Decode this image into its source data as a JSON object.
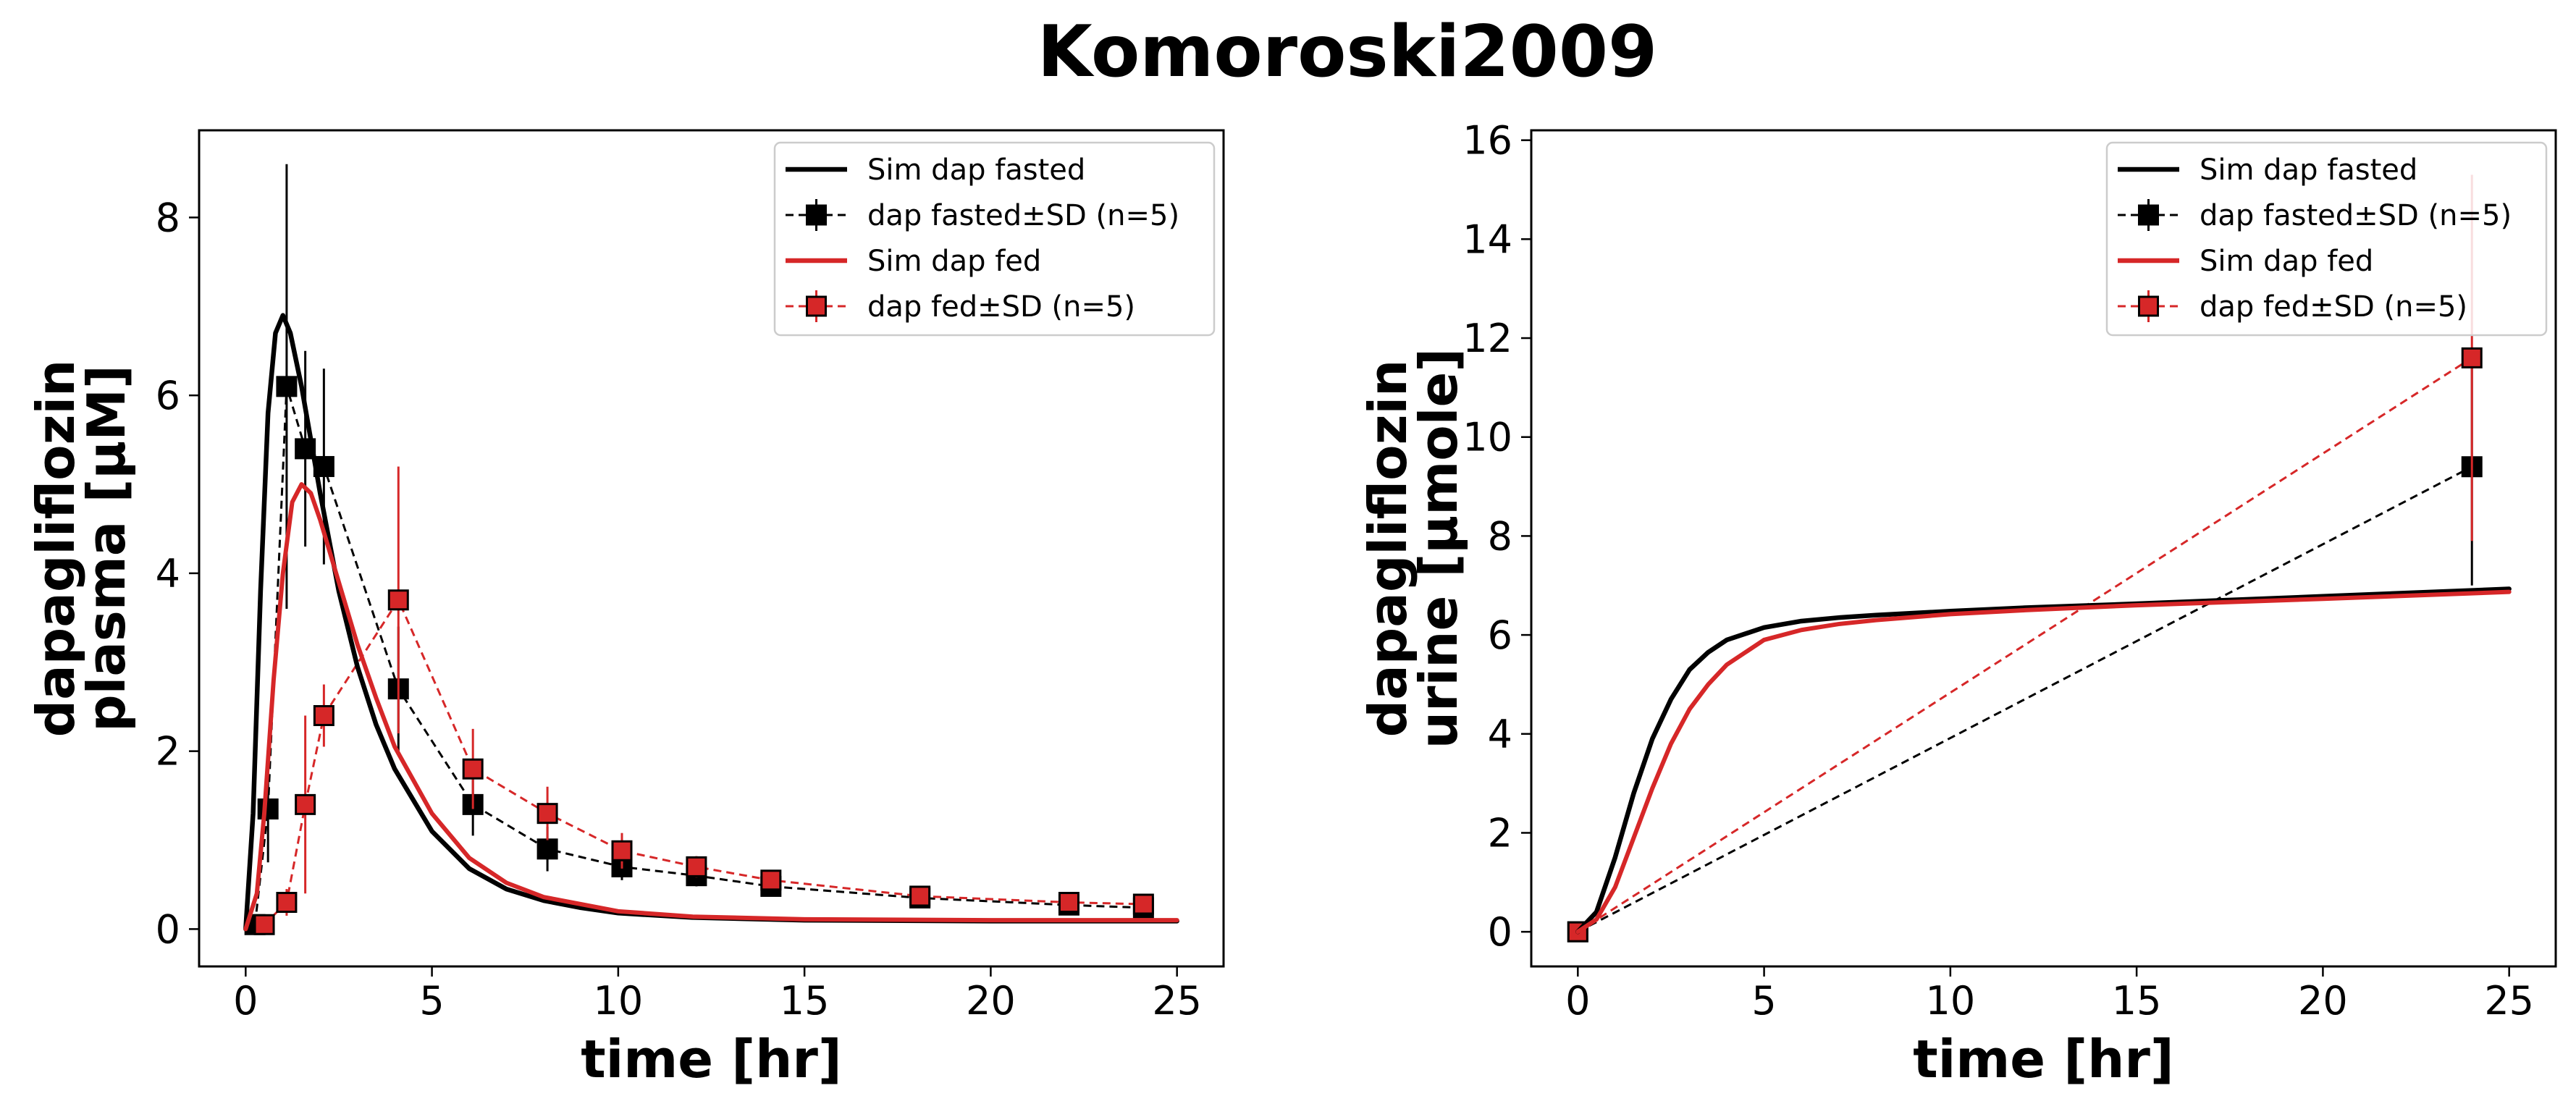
{
  "figure_title": "Komoroski2009",
  "colors": {
    "fasted": "#000000",
    "fed": "#d62728",
    "background": "#ffffff"
  },
  "chart_data": [
    {
      "type": "line",
      "xlabel": "time [hr]",
      "ylabel": [
        "dapagliflozin",
        "plasma [µM]"
      ],
      "xlim": [
        -1.25,
        26.25
      ],
      "ylim": [
        -0.42,
        8.98
      ],
      "xticks": [
        0,
        5,
        10,
        15,
        20,
        25
      ],
      "yticks": [
        0,
        2,
        4,
        6,
        8
      ],
      "legend_position": "top-right",
      "series": [
        {
          "name": "Sim dap fasted",
          "kind": "sim",
          "group": "fasted",
          "x": [
            0,
            0.2,
            0.4,
            0.6,
            0.8,
            1.0,
            1.2,
            1.5,
            2.0,
            2.5,
            3.0,
            3.5,
            4.0,
            5.0,
            6.0,
            7.0,
            8.0,
            9.0,
            10.0,
            12.0,
            15.0,
            20.0,
            25.0
          ],
          "y": [
            0,
            1.3,
            3.8,
            5.8,
            6.7,
            6.9,
            6.7,
            6.1,
            4.9,
            3.8,
            2.95,
            2.3,
            1.8,
            1.1,
            0.68,
            0.45,
            0.32,
            0.24,
            0.18,
            0.13,
            0.1,
            0.09,
            0.09
          ]
        },
        {
          "name": "dap fasted±SD (n=5)",
          "kind": "data",
          "group": "fasted",
          "x": [
            0.25,
            0.6,
            1.1,
            1.6,
            2.1,
            4.1,
            6.1,
            8.1,
            10.1,
            12.1,
            14.1,
            18.1,
            22.1,
            24.1
          ],
          "y": [
            0.05,
            1.35,
            6.1,
            5.4,
            5.2,
            2.7,
            1.4,
            0.9,
            0.7,
            0.6,
            0.48,
            0.35,
            0.27,
            0.24
          ],
          "sd": [
            0.03,
            0.6,
            2.5,
            1.1,
            1.1,
            0.7,
            0.35,
            0.25,
            0.15,
            0.12,
            0.1,
            0.08,
            0.07,
            0.06
          ]
        },
        {
          "name": "Sim dap fed",
          "kind": "sim",
          "group": "fed",
          "x": [
            0,
            0.3,
            0.5,
            0.75,
            1.0,
            1.25,
            1.5,
            1.75,
            2.0,
            2.5,
            3.0,
            3.5,
            4.0,
            5.0,
            6.0,
            7.0,
            8.0,
            10.0,
            12.0,
            15.0,
            20.0,
            25.0
          ],
          "y": [
            0,
            0.4,
            1.3,
            2.8,
            4.0,
            4.8,
            5.0,
            4.9,
            4.6,
            3.9,
            3.2,
            2.6,
            2.05,
            1.3,
            0.8,
            0.52,
            0.36,
            0.2,
            0.14,
            0.11,
            0.1,
            0.1
          ],
          "line_width": 6
        },
        {
          "name": "dap fed±SD (n=5)",
          "kind": "data",
          "group": "fed",
          "x": [
            0.5,
            1.1,
            1.6,
            2.1,
            4.1,
            6.1,
            8.1,
            10.1,
            12.1,
            14.1,
            18.1,
            22.1,
            24.1
          ],
          "y": [
            0.05,
            0.3,
            1.4,
            2.4,
            3.7,
            1.8,
            1.3,
            0.88,
            0.7,
            0.55,
            0.37,
            0.3,
            0.28
          ],
          "sd": [
            0.03,
            0.15,
            1.0,
            0.35,
            1.5,
            0.45,
            0.3,
            0.2,
            0.12,
            0.1,
            0.08,
            0.07,
            0.06
          ]
        }
      ]
    },
    {
      "type": "line",
      "xlabel": "time [hr]",
      "ylabel": [
        "dapagliflozin",
        "urine [µmole]"
      ],
      "xlim": [
        -1.25,
        26.25
      ],
      "ylim": [
        -0.7,
        16.2
      ],
      "xticks": [
        0,
        5,
        10,
        15,
        20,
        25
      ],
      "yticks": [
        0,
        2,
        4,
        6,
        8,
        10,
        12,
        14,
        16
      ],
      "legend_position": "top-right",
      "series": [
        {
          "name": "Sim dap fasted",
          "kind": "sim",
          "group": "fasted",
          "x": [
            0,
            0.5,
            1.0,
            1.5,
            2.0,
            2.5,
            3.0,
            3.5,
            4.0,
            5.0,
            6.0,
            7.0,
            8.0,
            10.0,
            12.0,
            15.0,
            20.0,
            25.0
          ],
          "y": [
            0,
            0.4,
            1.5,
            2.8,
            3.9,
            4.7,
            5.3,
            5.65,
            5.9,
            6.15,
            6.28,
            6.35,
            6.4,
            6.48,
            6.55,
            6.63,
            6.78,
            6.93
          ]
        },
        {
          "name": "dap fasted±SD (n=5)",
          "kind": "data",
          "group": "fasted",
          "x": [
            0,
            24
          ],
          "y": [
            0,
            9.4
          ],
          "sd": [
            0,
            2.4
          ]
        },
        {
          "name": "Sim dap fed",
          "kind": "sim",
          "group": "fed",
          "x": [
            0,
            0.5,
            1.0,
            1.5,
            2.0,
            2.5,
            3.0,
            3.5,
            4.0,
            5.0,
            6.0,
            7.0,
            8.0,
            10.0,
            12.0,
            15.0,
            20.0,
            25.0
          ],
          "y": [
            0,
            0.25,
            0.9,
            1.9,
            2.9,
            3.8,
            4.5,
            5.0,
            5.4,
            5.9,
            6.1,
            6.22,
            6.3,
            6.42,
            6.5,
            6.6,
            6.73,
            6.87
          ],
          "line_width": 6
        },
        {
          "name": "dap fed±SD (n=5)",
          "kind": "data",
          "group": "fed",
          "x": [
            0,
            24
          ],
          "y": [
            0,
            11.6
          ],
          "sd": [
            0,
            3.7
          ]
        }
      ]
    }
  ]
}
